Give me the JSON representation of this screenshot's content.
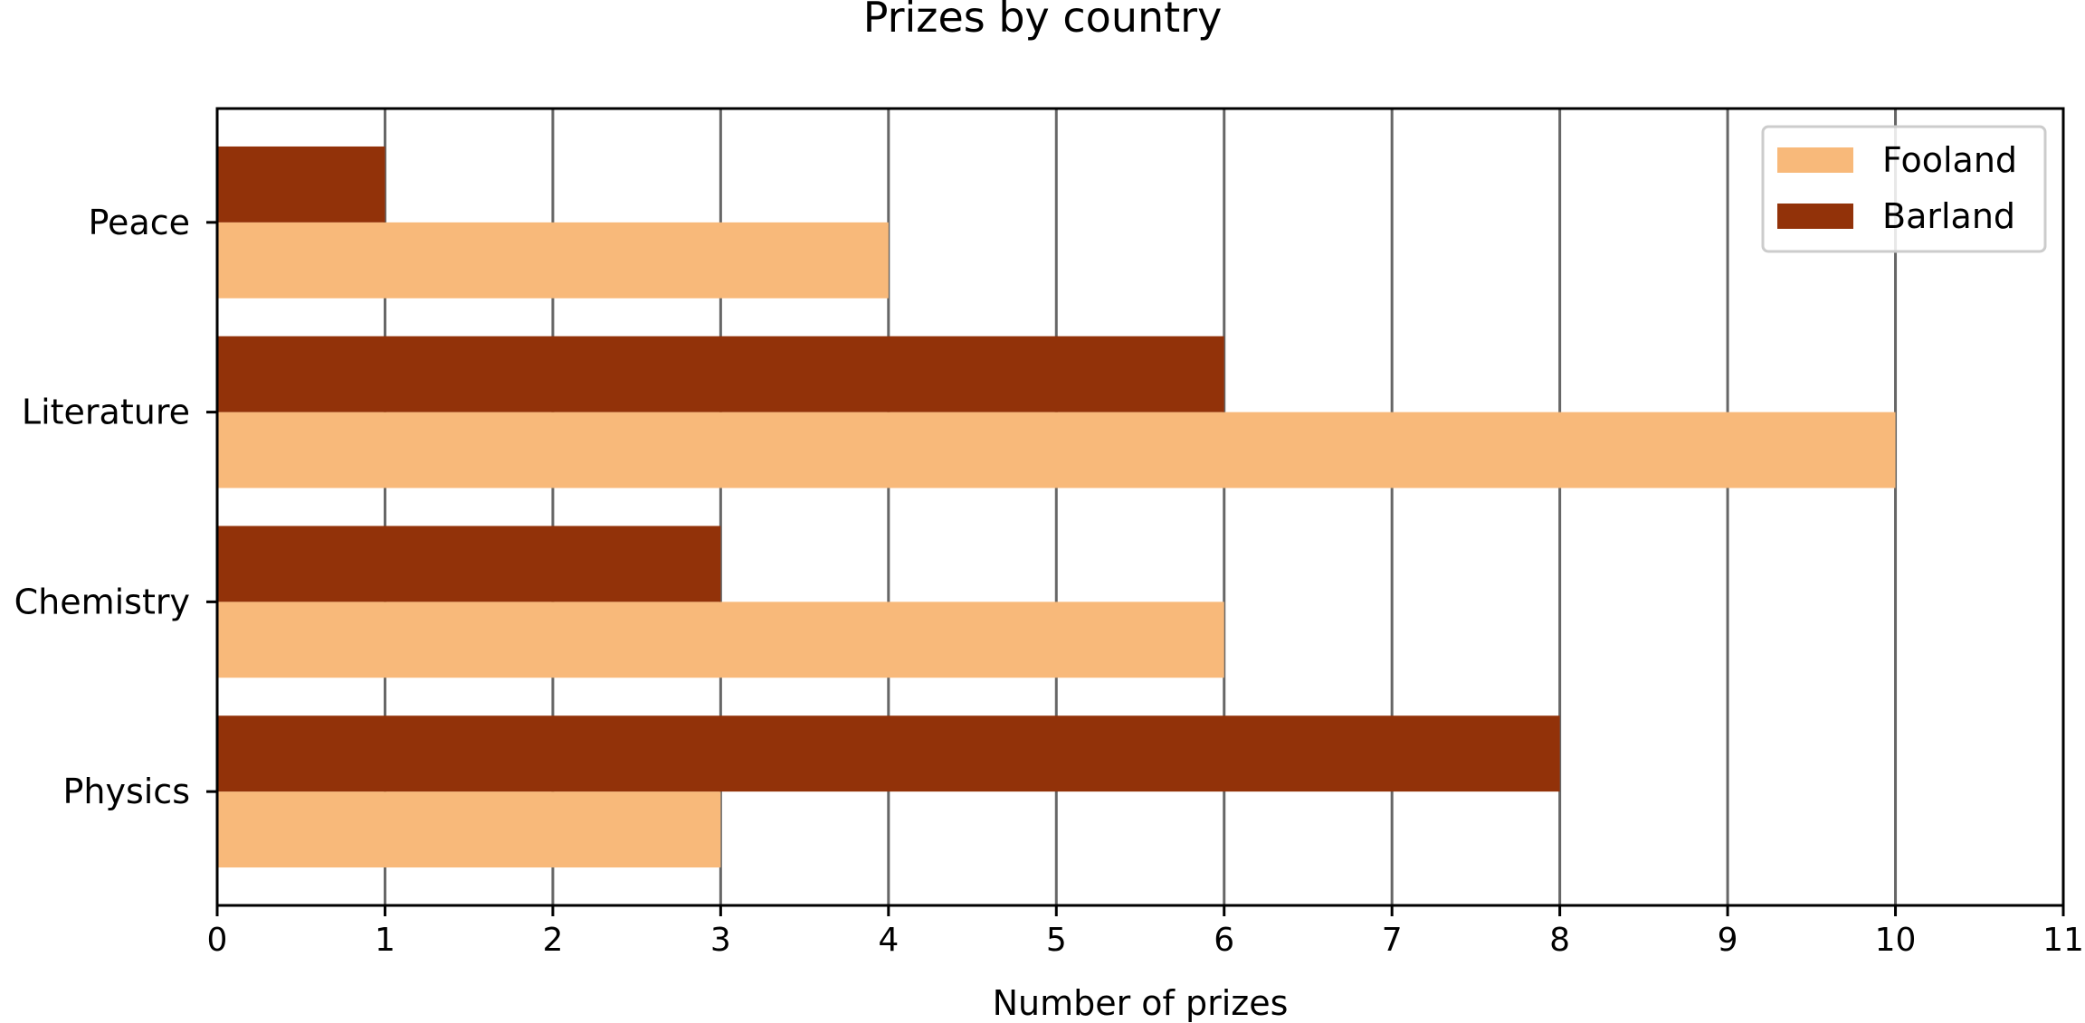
{
  "chart_data": {
    "type": "bar",
    "orientation": "horizontal",
    "title": "Prizes by country",
    "xlabel": "Number of prizes",
    "ylabel": "",
    "categories": [
      "Physics",
      "Chemistry",
      "Literature",
      "Peace"
    ],
    "series": [
      {
        "name": "Fooland",
        "color": "#F8B97A",
        "values": [
          3,
          6,
          10,
          4
        ]
      },
      {
        "name": "Barland",
        "color": "#923209",
        "values": [
          8,
          3,
          6,
          1
        ]
      }
    ],
    "xlim": [
      0,
      11
    ],
    "xticks": [
      "0",
      "1",
      "2",
      "3",
      "4",
      "5",
      "6",
      "7",
      "8",
      "9",
      "10",
      "11"
    ],
    "grid": "vertical",
    "grid_color": "#666666",
    "legend_position": "top-right"
  }
}
